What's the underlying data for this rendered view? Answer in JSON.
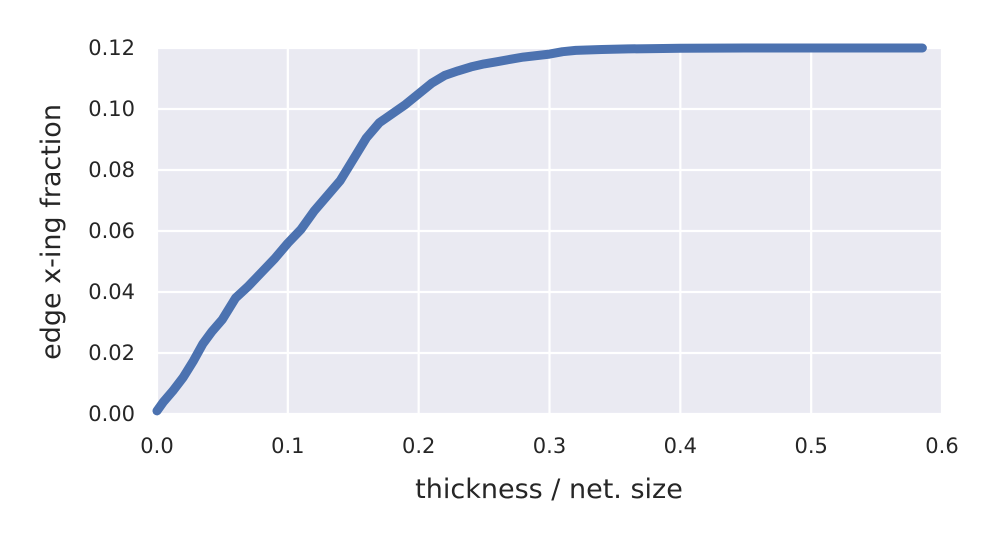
{
  "chart_data": {
    "type": "line",
    "title": "",
    "xlabel": "thickness / net. size",
    "ylabel": "edge x-ing fraction",
    "xlim": [
      0.0,
      0.6
    ],
    "ylim": [
      0.0,
      0.12
    ],
    "xticks": [
      0.0,
      0.1,
      0.2,
      0.3,
      0.4,
      0.5,
      0.6
    ],
    "xtick_labels": [
      "0.0",
      "0.1",
      "0.2",
      "0.3",
      "0.4",
      "0.5",
      "0.6"
    ],
    "yticks": [
      0.0,
      0.02,
      0.04,
      0.06,
      0.08,
      0.1,
      0.12
    ],
    "ytick_labels": [
      "0.00",
      "0.02",
      "0.04",
      "0.06",
      "0.08",
      "0.10",
      "0.12"
    ],
    "grid": true,
    "background_color": "#eaeaf2",
    "grid_color": "#ffffff",
    "series": [
      {
        "color": "#4c72b0",
        "x": [
          0.0,
          0.005,
          0.012,
          0.02,
          0.028,
          0.035,
          0.042,
          0.05,
          0.06,
          0.07,
          0.08,
          0.09,
          0.1,
          0.11,
          0.12,
          0.13,
          0.14,
          0.15,
          0.16,
          0.17,
          0.18,
          0.19,
          0.2,
          0.21,
          0.22,
          0.23,
          0.24,
          0.25,
          0.26,
          0.27,
          0.28,
          0.29,
          0.3,
          0.31,
          0.32,
          0.34,
          0.36,
          0.38,
          0.4,
          0.45,
          0.5,
          0.55,
          0.585
        ],
        "y": [
          0.001,
          0.004,
          0.0075,
          0.012,
          0.0175,
          0.023,
          0.027,
          0.031,
          0.038,
          0.042,
          0.0465,
          0.051,
          0.056,
          0.0605,
          0.0665,
          0.0715,
          0.0765,
          0.0835,
          0.0905,
          0.0955,
          0.0985,
          0.1015,
          0.105,
          0.1085,
          0.111,
          0.1125,
          0.1138,
          0.1148,
          0.1155,
          0.1163,
          0.117,
          0.1175,
          0.118,
          0.1188,
          0.1192,
          0.1195,
          0.1197,
          0.1198,
          0.1199,
          0.12,
          0.12,
          0.12,
          0.12
        ]
      }
    ]
  }
}
